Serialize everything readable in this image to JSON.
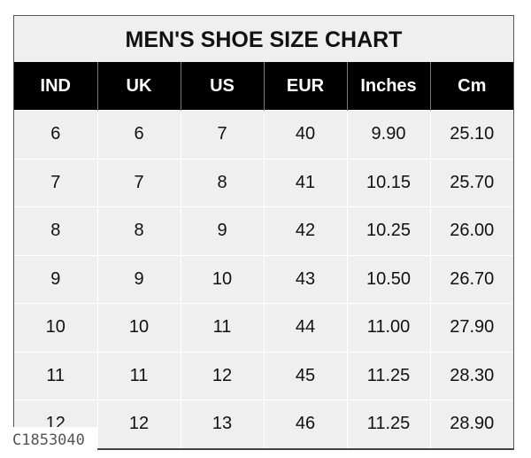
{
  "title": "MEN'S SHOE SIZE CHART",
  "columns": [
    "IND",
    "UK",
    "US",
    "EUR",
    "Inches",
    "Cm"
  ],
  "rows": [
    [
      "6",
      "6",
      "7",
      "40",
      "9.90",
      "25.10"
    ],
    [
      "7",
      "7",
      "8",
      "41",
      "10.15",
      "25.70"
    ],
    [
      "8",
      "8",
      "9",
      "42",
      "10.25",
      "26.00"
    ],
    [
      "9",
      "9",
      "10",
      "43",
      "10.50",
      "26.70"
    ],
    [
      "10",
      "10",
      "11",
      "44",
      "11.00",
      "27.90"
    ],
    [
      "11",
      "11",
      "12",
      "45",
      "11.25",
      "28.30"
    ],
    [
      "12",
      "12",
      "13",
      "46",
      "11.25",
      "28.90"
    ]
  ],
  "watermark": "C1853040",
  "colors": {
    "header_bg": "#000000",
    "header_text": "#ffffff",
    "cell_bg": "#efefef"
  }
}
